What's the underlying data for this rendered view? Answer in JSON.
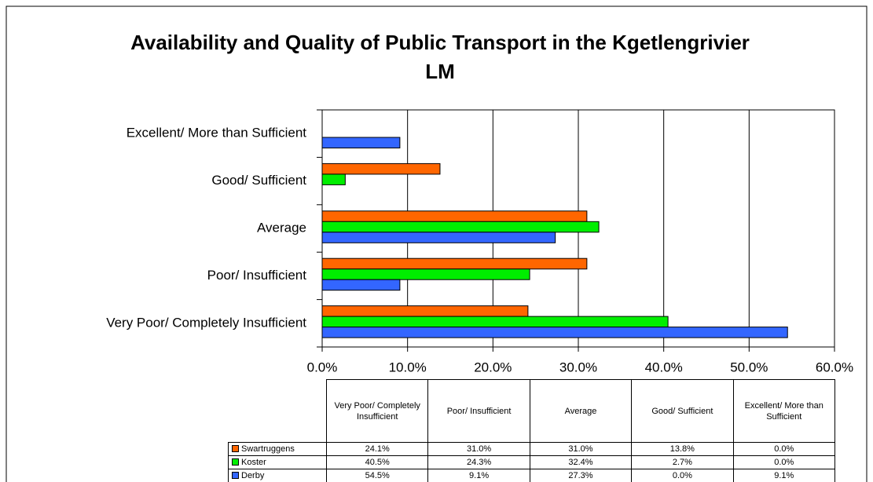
{
  "chart_data": {
    "type": "bar",
    "orientation": "horizontal",
    "title": "Availability and Quality of Public Transport in the Kgetlengrivier LM",
    "categories": [
      "Very Poor/ Completely Insufficient",
      "Poor/ Insufficient",
      "Average",
      "Good/ Sufficient",
      "Excellent/ More than Sufficient"
    ],
    "series": [
      {
        "name": "Swartruggens",
        "color": "#ff6600",
        "values": [
          24.1,
          31.0,
          31.0,
          13.8,
          0.0
        ],
        "value_labels": [
          "24.1%",
          "31.0%",
          "31.0%",
          "13.8%",
          "0.0%"
        ]
      },
      {
        "name": "Koster",
        "color": "#00ee00",
        "values": [
          40.5,
          24.3,
          32.4,
          2.7,
          0.0
        ],
        "value_labels": [
          "40.5%",
          "24.3%",
          "32.4%",
          "2.7%",
          "0.0%"
        ]
      },
      {
        "name": "Derby",
        "color": "#3366ff",
        "values": [
          54.5,
          9.1,
          27.3,
          0.0,
          9.1
        ],
        "value_labels": [
          "54.5%",
          "9.1%",
          "27.3%",
          "0.0%",
          "9.1%"
        ]
      }
    ],
    "xlim": [
      0,
      60
    ],
    "xticks": [
      {
        "value": 0,
        "label": "0.0%"
      },
      {
        "value": 10,
        "label": "10.0%"
      },
      {
        "value": 20,
        "label": "20.0%"
      },
      {
        "value": 30,
        "label": "30.0%"
      },
      {
        "value": 40,
        "label": "40.0%"
      },
      {
        "value": 50,
        "label": "50.0%"
      },
      {
        "value": 60,
        "label": "60.0%"
      }
    ],
    "grid": true,
    "legend": "table"
  }
}
